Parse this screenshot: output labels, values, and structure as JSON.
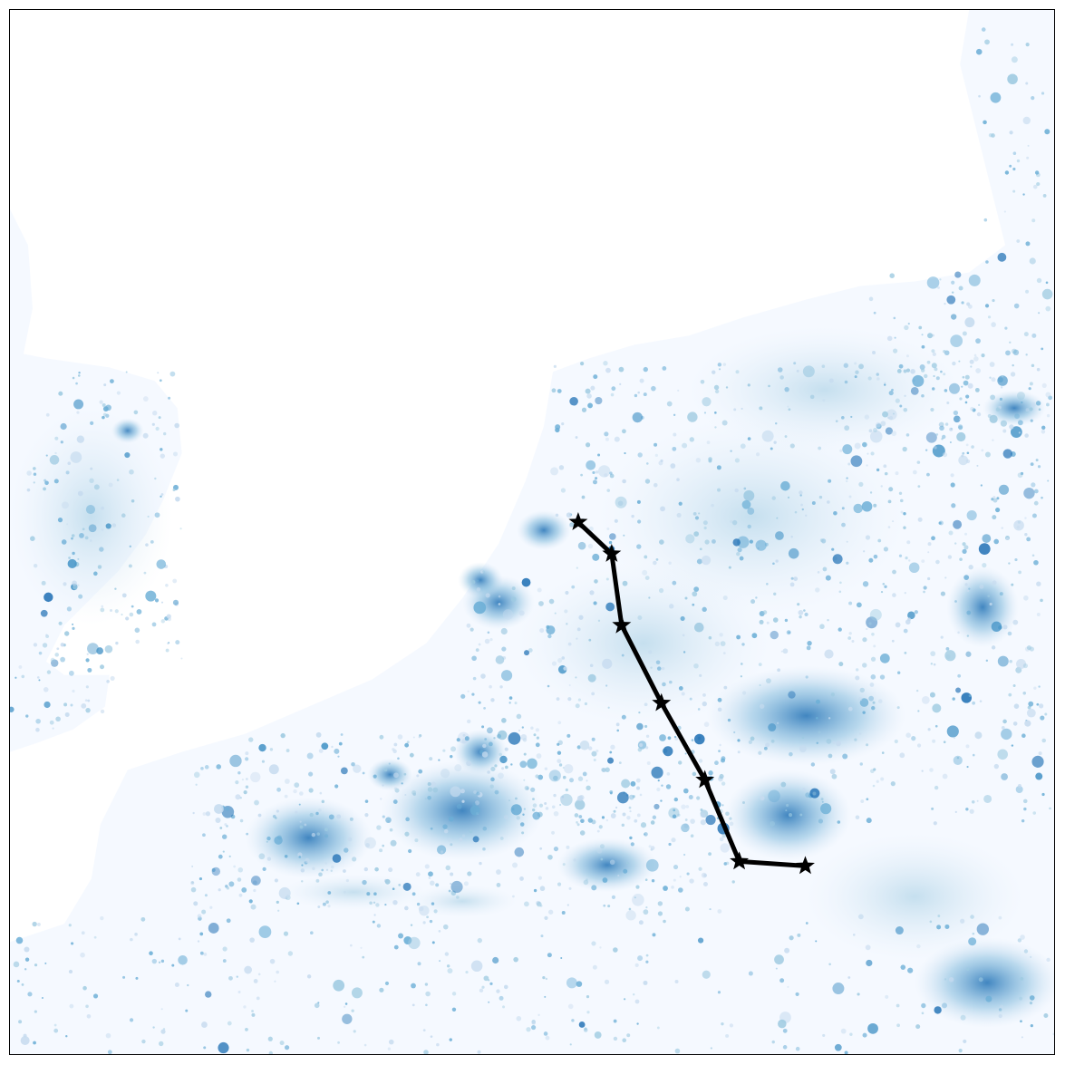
{
  "map": {
    "colormap": "Blues",
    "colors": {
      "water": "#ffffff",
      "land_base": "#f5f9ff",
      "density_low": "#c6dbef",
      "density_mid": "#6baed6",
      "density_high": "#2171b5",
      "route_line": "#000000",
      "route_marker": "#000000"
    },
    "route": {
      "marker_icon": "star-icon",
      "stop_count": 7
    }
  }
}
